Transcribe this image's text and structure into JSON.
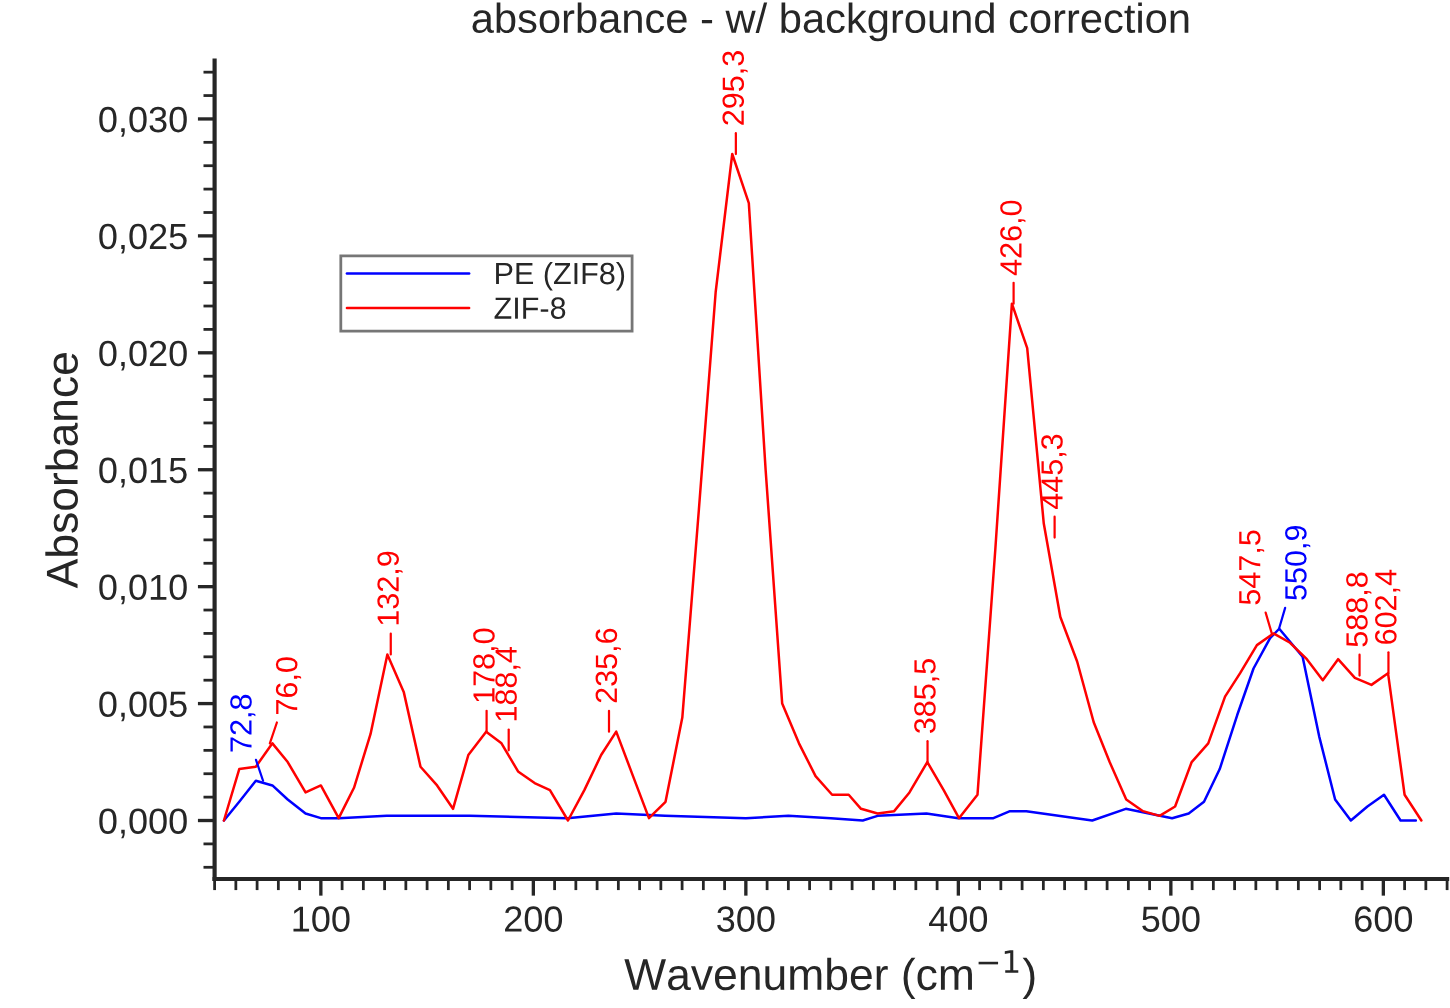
{
  "chart_data": {
    "type": "line",
    "title": "absorbance - w/ background correction",
    "xlabel": "Wavenumber (cm$^{−1}$)",
    "ylabel": "Absorbance",
    "xlim": [
      50,
      630
    ],
    "xticks": [
      100,
      200,
      300,
      400,
      500,
      600
    ],
    "ylim": [
      -0.0025,
      0.0325
    ],
    "yticks": [
      {
        "value": 0,
        "label": "0,000"
      },
      {
        "value": 0.005,
        "label": "0,005"
      },
      {
        "value": 0.01,
        "label": "0,010"
      },
      {
        "value": 0.015,
        "label": "0,015"
      },
      {
        "value": 0.02,
        "label": "0,020"
      },
      {
        "value": 0.025,
        "label": "0,025"
      },
      {
        "value": 0.03,
        "label": "0,030"
      }
    ],
    "grid": false,
    "legend": "top left",
    "marker": "none",
    "line_style": "solid",
    "series": [
      {
        "name": "PE (ZIF8)",
        "color": "#0000ff",
        "x": [
          54.4,
          61.6,
          69.4,
          77.2,
          84.4,
          92.8,
          100,
          108.4,
          131,
          170,
          216,
          239,
          262,
          300,
          320,
          340,
          355,
          362,
          385,
          400,
          416.5,
          424.3,
          432,
          463,
          478.8,
          500.6,
          508.4,
          515.6,
          523,
          531.2,
          538.9,
          546.7,
          551,
          562,
          569.8,
          577.3,
          584.7,
          592.5,
          600.3,
          608.1,
          615.3
        ],
        "values": [
          0,
          0.0008,
          0.0017,
          0.0015,
          0.0009,
          0.0003,
          0.0001,
          0.0001,
          0.0002,
          0.0002,
          0.0001,
          0.0003,
          0.0002,
          0.0001,
          0.0002,
          0.0001,
          0,
          0.0002,
          0.0003,
          0.0001,
          0.0001,
          0.0004,
          0.0004,
          0,
          0.0005,
          0.0001,
          0.0003,
          0.0008,
          0.0022,
          0.0045,
          0.0065,
          0.0078,
          0.0082,
          0.007,
          0.0036,
          0.0009,
          0,
          0.0006,
          0.0011,
          0,
          0
        ]
      },
      {
        "name": "ZIF-8",
        "color": "#ff0000",
        "x": [
          54.4,
          61.6,
          69.4,
          77.2,
          84.4,
          92.8,
          100,
          108.4,
          115.6,
          123.4,
          131.3,
          139,
          146.9,
          154.7,
          162.2,
          169.4,
          177.8,
          185,
          192.8,
          200.6,
          207.8,
          216.3,
          224,
          231.9,
          239,
          246.9,
          254.4,
          262.2,
          270.1,
          277.9,
          285.8,
          293.6,
          301.4,
          309.3,
          317.1,
          325,
          332.8,
          340.6,
          348.4,
          354.2,
          362,
          369.8,
          377,
          385.4,
          393.1,
          400.3,
          409,
          417.4,
          425.2,
          432.4,
          440.2,
          448,
          455.9,
          463.7,
          471.2,
          479,
          486.9,
          494.7,
          502,
          509.8,
          517.6,
          525.5,
          532.6,
          540.5,
          548.3,
          556.1,
          564,
          571.5,
          578.7,
          586.6,
          594.4,
          602.2,
          610,
          617.9
        ],
        "values": [
          0,
          0.0022,
          0.0023,
          0.0033,
          0.0025,
          0.0012,
          0.0015,
          0.0001,
          0.0014,
          0.0037,
          0.0071,
          0.0055,
          0.0023,
          0.0015,
          0.0005,
          0.0028,
          0.0038,
          0.0033,
          0.0021,
          0.0016,
          0.0013,
          0,
          0.0013,
          0.0028,
          0.0038,
          0.0019,
          0.0001,
          0.0008,
          0.0044,
          0.0133,
          0.0226,
          0.0285,
          0.0264,
          0.015,
          0.005,
          0.0033,
          0.0019,
          0.0011,
          0.0011,
          0.0005,
          0.0003,
          0.0004,
          0.0012,
          0.0025,
          0.0013,
          0.0001,
          0.0011,
          0.0116,
          0.0221,
          0.0202,
          0.0127,
          0.0087,
          0.0068,
          0.0042,
          0.0025,
          0.0009,
          0.0004,
          0.0002,
          0.0006,
          0.0025,
          0.0033,
          0.0053,
          0.0063,
          0.0075,
          0.008,
          0.0076,
          0.0069,
          0.006,
          0.0069,
          0.0061,
          0.0058,
          0.0063,
          0.0011,
          0
        ]
      }
    ],
    "annotations": [
      {
        "text": "72,8",
        "x": 72.8,
        "y": 0.0017
      },
      {
        "text": "76,0",
        "x": 76.0,
        "y": 0.0033
      },
      {
        "text": "132,9",
        "x": 132.9,
        "y": 0.0071
      },
      {
        "text": "178,0",
        "x": 178.0,
        "y": 0.0038
      },
      {
        "text": "188,4",
        "x": 188.4,
        "y": 0.003
      },
      {
        "text": "235,6",
        "x": 235.6,
        "y": 0.0038
      },
      {
        "text": "295,3",
        "x": 295.3,
        "y": 0.0285
      },
      {
        "text": "385,5",
        "x": 385.5,
        "y": 0.0025
      },
      {
        "text": "426,0",
        "x": 426.0,
        "y": 0.0221
      },
      {
        "text": "445,3",
        "x": 445.3,
        "y": 0.0121
      },
      {
        "text": "547,5",
        "x": 547.5,
        "y": 0.008
      },
      {
        "text": "550,9",
        "x": 550.9,
        "y": 0.0082
      },
      {
        "text": "588,8",
        "x": 588.8,
        "y": 0.0062
      },
      {
        "text": "602,4",
        "x": 602.4,
        "y": 0.0063
      }
    ]
  }
}
